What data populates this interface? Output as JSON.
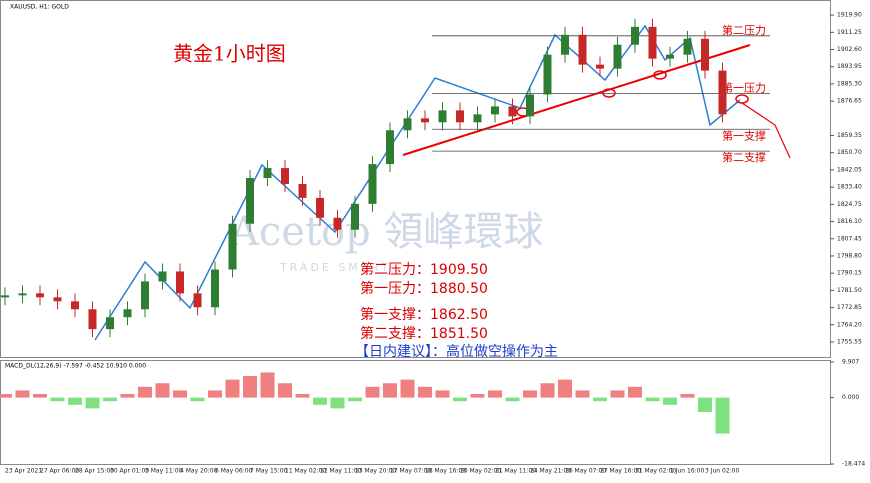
{
  "chart_data": {
    "type": "candlestick",
    "symbol": "XAUUSD, H1: GOLD",
    "title": "黄金1小时图",
    "watermark": "Acetop 領峰環球",
    "watermark_sub": "TRADE SMART",
    "categories": [
      "23 Apr 2021",
      null,
      "27 Apr 06:00",
      null,
      "28 Apr 15:00",
      null,
      "30 Apr 01:00",
      null,
      "3 May 11:00",
      null,
      "4 May 20:00",
      null,
      "6 May 06:00",
      null,
      "7 May 15:00",
      null,
      "11 May 02:00",
      null,
      "12 May 11:00",
      null,
      "13 May 20:00",
      null,
      "17 May 07:00",
      null,
      "18 May 16:00",
      null,
      "20 May 02:00",
      null,
      "21 May 11:00",
      null,
      "24 May 21:00",
      null,
      "26 May 07:00",
      null,
      "27 May 16:00",
      null,
      "31 May 02:00",
      null,
      "1 Jun 16:00",
      null,
      "3 Jun 02:00",
      null
    ],
    "open": [
      1778,
      1779,
      1780,
      1778,
      1776,
      1772,
      1762,
      1768,
      1772,
      1786,
      1791,
      1780,
      1773,
      1792,
      1815,
      1838,
      1843,
      1835,
      1828,
      1818,
      1812,
      1825,
      1845,
      1862,
      1868,
      1866,
      1872,
      1866,
      1870,
      1874,
      1869,
      1880,
      1900,
      1910,
      1895,
      1893,
      1905,
      1914,
      1898,
      1900,
      1908,
      1892
    ],
    "high": [
      1783,
      1784,
      1784,
      1782,
      1780,
      1776,
      1772,
      1776,
      1790,
      1795,
      1795,
      1784,
      1796,
      1819,
      1842,
      1847,
      1847,
      1839,
      1832,
      1822,
      1829,
      1849,
      1866,
      1872,
      1872,
      1876,
      1876,
      1874,
      1878,
      1878,
      1884,
      1904,
      1914,
      1914,
      1899,
      1909,
      1918,
      1918,
      1904,
      1912,
      1912,
      1896
    ],
    "low": [
      1774,
      1775,
      1774,
      1772,
      1768,
      1758,
      1758,
      1764,
      1768,
      1782,
      1776,
      1769,
      1769,
      1788,
      1811,
      1834,
      1831,
      1824,
      1814,
      1808,
      1808,
      1821,
      1841,
      1858,
      1862,
      1862,
      1862,
      1862,
      1866,
      1865,
      1865,
      1876,
      1896,
      1891,
      1889,
      1889,
      1901,
      1894,
      1894,
      1896,
      1888,
      1866
    ],
    "close": [
      1779,
      1780,
      1778,
      1776,
      1772,
      1762,
      1768,
      1772,
      1786,
      1791,
      1780,
      1773,
      1792,
      1815,
      1838,
      1843,
      1835,
      1828,
      1818,
      1812,
      1825,
      1845,
      1862,
      1868,
      1866,
      1872,
      1866,
      1870,
      1874,
      1869,
      1880,
      1900,
      1910,
      1895,
      1893,
      1905,
      1914,
      1898,
      1900,
      1908,
      1892,
      1870
    ],
    "up_color": "#2e7d32",
    "down_color": "#c62828",
    "ylim": [
      1748,
      1927
    ],
    "yticks": [
      {
        "value": 1919.9,
        "label": "1919.90"
      },
      {
        "value": 1911.25,
        "label": "1911.25"
      },
      {
        "value": 1902.6,
        "label": "1902.60"
      },
      {
        "value": 1893.95,
        "label": "1893.95"
      },
      {
        "value": 1885.3,
        "label": "1885.30"
      },
      {
        "value": 1876.65,
        "label": "1876.65"
      },
      {
        "value": 1859.35,
        "label": "1859.35"
      },
      {
        "value": 1850.7,
        "label": "1850.70"
      },
      {
        "value": 1842.05,
        "label": "1842.05"
      },
      {
        "value": 1833.4,
        "label": "1833.40"
      },
      {
        "value": 1824.75,
        "label": "1824.75"
      },
      {
        "value": 1816.1,
        "label": "1816.10"
      },
      {
        "value": 1807.45,
        "label": "1807.45"
      },
      {
        "value": 1798.8,
        "label": "1798.80"
      },
      {
        "value": 1790.15,
        "label": "1790.15"
      },
      {
        "value": 1781.5,
        "label": "1781.50"
      },
      {
        "value": 1772.85,
        "label": "1772.85"
      },
      {
        "value": 1764.2,
        "label": "1764.20"
      },
      {
        "value": 1755.55,
        "label": "1755.55"
      }
    ],
    "levels": [
      {
        "label": "第二压力",
        "value": 1909.5
      },
      {
        "label": "第一压力",
        "value": 1880.5
      },
      {
        "label": "第一支撑",
        "value": 1862.5
      },
      {
        "label": "第二支撑",
        "value": 1851.5
      }
    ],
    "annotations": [
      "第二压力：1909.50",
      "第一压力：1880.50",
      "第一支撑：1862.50",
      "第二支撑：1851.50",
      "【日内建议】：高位做空操作为主"
    ],
    "macd": {
      "label": "MACD_DL(12,26,9) -7.597 -0.452 10.910 0.000",
      "values": [
        1,
        2,
        1,
        -1,
        -2,
        -3,
        -1,
        1,
        3,
        4,
        2,
        -1,
        2,
        5,
        6,
        7,
        4,
        1,
        -2,
        -3,
        -1,
        3,
        4,
        5,
        3,
        2,
        -1,
        1,
        2,
        -1,
        2,
        4,
        5,
        2,
        -1,
        2,
        3,
        -1,
        -2,
        1,
        -4,
        -10
      ],
      "positive_color": "#f08080",
      "negative_color": "#7ee07e",
      "ylim": [
        -18.474,
        9.907
      ],
      "yticks": [
        9.907,
        {
          "value": 0,
          "label": "0.000"
        },
        -18.474
      ]
    }
  }
}
